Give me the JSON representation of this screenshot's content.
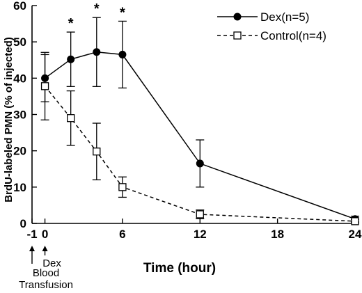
{
  "chart_data": {
    "type": "line",
    "title": "",
    "xlabel": "Time (hour)",
    "ylabel": "BrdU-labeled PMN (% of injected)",
    "xlim": [
      -1,
      24
    ],
    "ylim": [
      0,
      60
    ],
    "x_ticks": [
      -1,
      0,
      6,
      12,
      18,
      24
    ],
    "y_ticks": [
      0,
      10,
      20,
      30,
      40,
      50,
      60
    ],
    "grid": false,
    "legend_position": "top-right",
    "series": [
      {
        "name": "Dex(n=5)",
        "marker": "filled-circle",
        "line_style": "solid",
        "color": "#000000",
        "x": [
          0,
          2,
          4,
          6,
          12,
          24
        ],
        "y": [
          40,
          45.2,
          47.2,
          46.5,
          16.5,
          1.2
        ],
        "err": [
          6.5,
          7.5,
          9.5,
          9.2,
          6.5,
          0.8
        ]
      },
      {
        "name": "Control(n=4)",
        "marker": "open-square",
        "line_style": "dashed",
        "color": "#000000",
        "x": [
          0,
          2,
          4,
          6,
          12,
          24
        ],
        "y": [
          37.8,
          29,
          19.8,
          10,
          2.5,
          0.6
        ],
        "err": [
          9.3,
          7.5,
          7.8,
          2.8,
          1.2,
          0.5
        ]
      }
    ],
    "significance_marks": [
      {
        "x": 2,
        "label": "*"
      },
      {
        "x": 4,
        "label": "*"
      },
      {
        "x": 6,
        "label": "*"
      }
    ],
    "annotations": [
      {
        "x": -1,
        "label_lines": [
          "Blood",
          "Transfusion"
        ]
      },
      {
        "x": 0,
        "label_lines": [
          "Dex"
        ]
      }
    ]
  }
}
